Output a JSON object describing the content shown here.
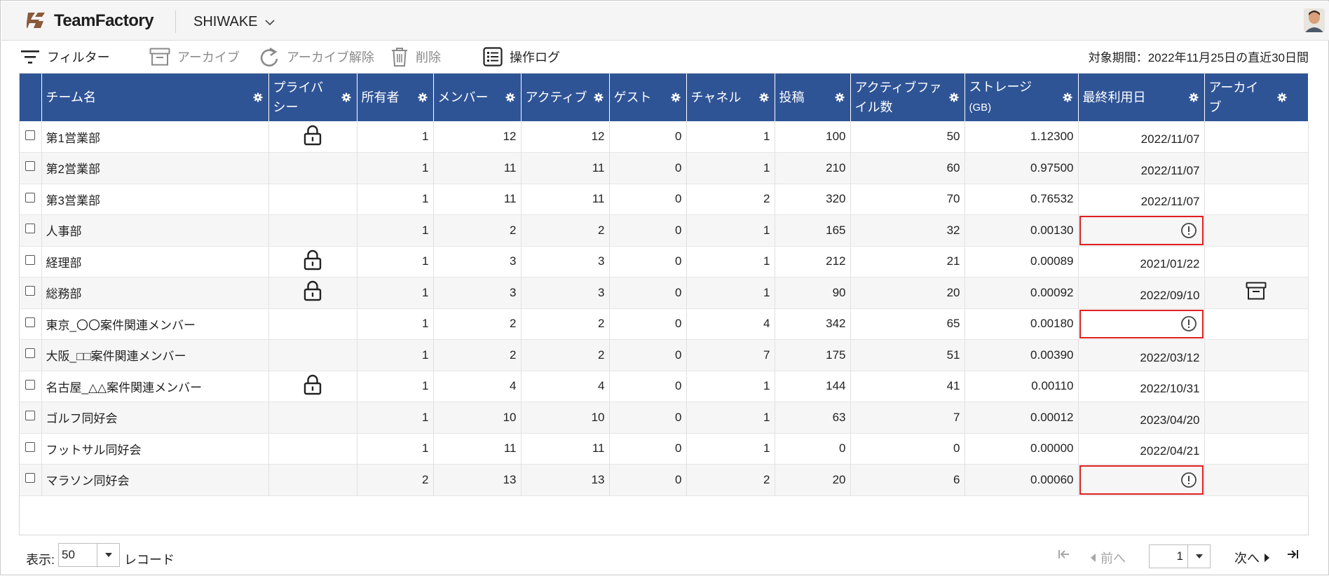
{
  "app": {
    "brand": "TeamFactory",
    "tenant": "SHIWAKE"
  },
  "toolbar": {
    "filter": "フィルター",
    "archive": "アーカイブ",
    "unarchive": "アーカイブ解除",
    "delete": "削除",
    "log": "操作ログ",
    "period": "対象期間：2022年11月25日の直近30日間"
  },
  "columns": {
    "team": "チーム名",
    "privacy": "プライバシー",
    "owners": "所有者",
    "members": "メンバー",
    "active": "アクティブ",
    "guests": "ゲスト",
    "channels": "チャネル",
    "posts": "投稿",
    "active_files": "アクティブファイル数",
    "storage": "ストレージ",
    "storage_unit": "(GB)",
    "last_used": "最終利用日",
    "archive": "アーカイブ"
  },
  "rows": [
    {
      "team": "第1営業部",
      "private": true,
      "owners": "1",
      "members": "12",
      "active": "12",
      "guests": "0",
      "channels": "1",
      "posts": "100",
      "files": "50",
      "storage": "1.12300",
      "last": "2022/11/07",
      "warn": false,
      "archived": false
    },
    {
      "team": "第2営業部",
      "private": false,
      "owners": "1",
      "members": "11",
      "active": "11",
      "guests": "0",
      "channels": "1",
      "posts": "210",
      "files": "60",
      "storage": "0.97500",
      "last": "2022/11/07",
      "warn": false,
      "archived": false
    },
    {
      "team": "第3営業部",
      "private": false,
      "owners": "1",
      "members": "11",
      "active": "11",
      "guests": "0",
      "channels": "2",
      "posts": "320",
      "files": "70",
      "storage": "0.76532",
      "last": "2022/11/07",
      "warn": false,
      "archived": false
    },
    {
      "team": "人事部",
      "private": false,
      "owners": "1",
      "members": "2",
      "active": "2",
      "guests": "0",
      "channels": "1",
      "posts": "165",
      "files": "32",
      "storage": "0.00130",
      "last": "",
      "warn": true,
      "archived": false
    },
    {
      "team": "経理部",
      "private": true,
      "owners": "1",
      "members": "3",
      "active": "3",
      "guests": "0",
      "channels": "1",
      "posts": "212",
      "files": "21",
      "storage": "0.00089",
      "last": "2021/01/22",
      "warn": false,
      "archived": false
    },
    {
      "team": "総務部",
      "private": true,
      "owners": "1",
      "members": "3",
      "active": "3",
      "guests": "0",
      "channels": "1",
      "posts": "90",
      "files": "20",
      "storage": "0.00092",
      "last": "2022/09/10",
      "warn": false,
      "archived": true
    },
    {
      "team": "東京_〇〇案件関連メンバー",
      "private": false,
      "owners": "1",
      "members": "2",
      "active": "2",
      "guests": "0",
      "channels": "4",
      "posts": "342",
      "files": "65",
      "storage": "0.00180",
      "last": "",
      "warn": true,
      "archived": false
    },
    {
      "team": "大阪_□□案件関連メンバー",
      "private": false,
      "owners": "1",
      "members": "2",
      "active": "2",
      "guests": "0",
      "channels": "7",
      "posts": "175",
      "files": "51",
      "storage": "0.00390",
      "last": "2022/03/12",
      "warn": false,
      "archived": false
    },
    {
      "team": "名古屋_△△案件関連メンバー",
      "private": true,
      "owners": "1",
      "members": "4",
      "active": "4",
      "guests": "0",
      "channels": "1",
      "posts": "144",
      "files": "41",
      "storage": "0.00110",
      "last": "2022/10/31",
      "warn": false,
      "archived": false
    },
    {
      "team": "ゴルフ同好会",
      "private": false,
      "owners": "1",
      "members": "10",
      "active": "10",
      "guests": "0",
      "channels": "1",
      "posts": "63",
      "files": "7",
      "storage": "0.00012",
      "last": "2023/04/20",
      "warn": false,
      "archived": false
    },
    {
      "team": "フットサル同好会",
      "private": false,
      "owners": "1",
      "members": "11",
      "active": "11",
      "guests": "0",
      "channels": "1",
      "posts": "0",
      "files": "0",
      "storage": "0.00000",
      "last": "2022/04/21",
      "warn": false,
      "archived": false
    },
    {
      "team": "マラソン同好会",
      "private": false,
      "owners": "2",
      "members": "13",
      "active": "13",
      "guests": "0",
      "channels": "2",
      "posts": "20",
      "files": "6",
      "storage": "0.00060",
      "last": "",
      "warn": true,
      "archived": false
    }
  ],
  "footer": {
    "display_label": "表示:",
    "page_size": "50",
    "records_label": "レコード",
    "prev": "前へ",
    "next": "次へ",
    "page": "1"
  },
  "icons": {
    "filter": "filter-icon",
    "archive": "archive-box-icon",
    "unarchive": "undo-arrow-icon",
    "delete": "trash-icon",
    "log": "list-icon",
    "lock": "lock-icon",
    "warning": "exclamation-circle-icon",
    "gear": "gear-icon"
  },
  "colors": {
    "header_bg": "#2f5496",
    "warn": "#e02020",
    "row_alt": "#f6f6f6"
  }
}
